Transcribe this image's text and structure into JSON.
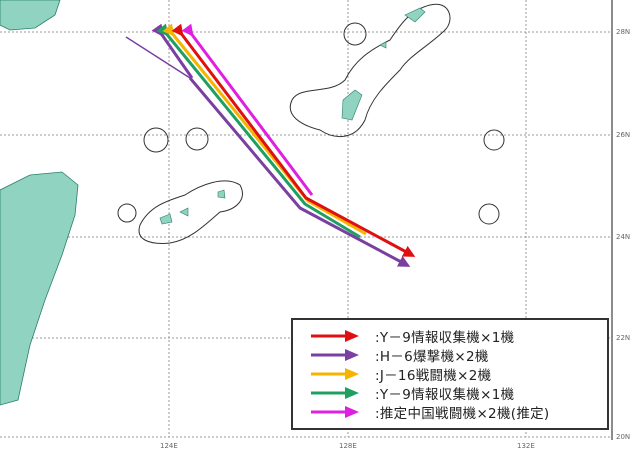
{
  "map": {
    "latitude_labels": [
      "28N",
      "26N",
      "24N",
      "22N",
      "20N"
    ],
    "longitude_labels": [
      "124E",
      "128E",
      "132E"
    ],
    "colors": {
      "land": "#8fd3c0",
      "land_outline": "#2a7f6a",
      "buffer_outline": "#333333",
      "grid": "#999999"
    }
  },
  "legend": {
    "items": [
      {
        "label": ":Y－9情報収集機×1機",
        "color": "#e01010"
      },
      {
        "label": ":H－6爆撃機×2機",
        "color": "#7a3fa0"
      },
      {
        "label": ":J－16戦闘機×2機",
        "color": "#f4b400"
      },
      {
        "label": ":Y－9情報収集機×1機",
        "color": "#1fa060"
      },
      {
        "label": ":推定中国戦闘機×2機(推定)",
        "color": "#e020e0"
      }
    ]
  }
}
